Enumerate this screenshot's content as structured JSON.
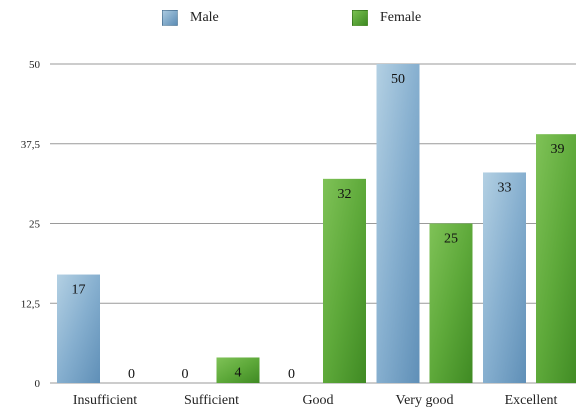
{
  "chart_data": {
    "type": "bar",
    "title": "",
    "xlabel": "",
    "ylabel": "",
    "categories": [
      "Insufficient",
      "Sufficient",
      "Good",
      "Very good",
      "Excellent"
    ],
    "series": [
      {
        "name": "Male",
        "color": "#7aa6c8",
        "values": [
          17,
          0,
          0,
          50,
          33
        ]
      },
      {
        "name": "Female",
        "color": "#4f9a32",
        "values": [
          0,
          4,
          32,
          25,
          39
        ]
      }
    ],
    "yticks": [
      "0",
      "12,5",
      "25",
      "37,5",
      "50"
    ],
    "ytick_values": [
      0,
      12.5,
      25,
      37.5,
      50
    ],
    "ylim": [
      0,
      50
    ],
    "grid": true,
    "legend": "top"
  }
}
